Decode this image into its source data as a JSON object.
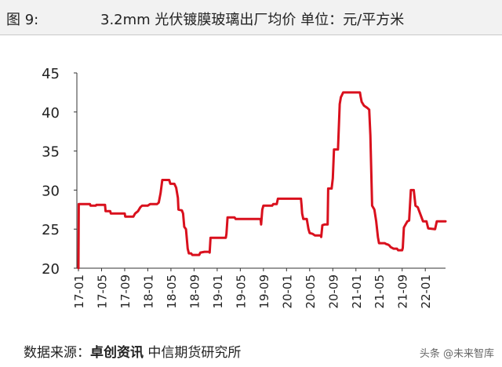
{
  "header": {
    "fig_label": "图 9:",
    "title": "3.2mm 光伏镀膜玻璃出厂均价  单位：元/平方米"
  },
  "footer": {
    "source_prefix": "数据来源：",
    "source_org": "卓创资讯",
    "source_suffix": "  中信期货研究所",
    "watermark": "头条 @未来智库"
  },
  "chart_data": {
    "type": "line",
    "title": "3.2mm 光伏镀膜玻璃出厂均价",
    "ylabel": "元/平方米",
    "ylim": [
      20,
      45
    ],
    "yticks": [
      20,
      25,
      30,
      35,
      40,
      45
    ],
    "xlim": [
      0,
      63.5
    ],
    "xticks": [
      {
        "m": 0,
        "label": "17-01"
      },
      {
        "m": 4,
        "label": "17-05"
      },
      {
        "m": 8,
        "label": "17-09"
      },
      {
        "m": 12,
        "label": "18-01"
      },
      {
        "m": 16,
        "label": "18-05"
      },
      {
        "m": 20,
        "label": "18-09"
      },
      {
        "m": 24,
        "label": "19-01"
      },
      {
        "m": 28,
        "label": "19-05"
      },
      {
        "m": 32,
        "label": "19-09"
      },
      {
        "m": 36,
        "label": "20-01"
      },
      {
        "m": 40,
        "label": "20-05"
      },
      {
        "m": 44,
        "label": "20-09"
      },
      {
        "m": 48,
        "label": "21-01"
      },
      {
        "m": 52,
        "label": "21-05"
      },
      {
        "m": 56,
        "label": "21-09"
      },
      {
        "m": 60,
        "label": "22-01"
      }
    ],
    "line_color": "#d9101d",
    "series": [
      {
        "name": "",
        "points": [
          [
            0,
            20.0
          ],
          [
            0.05,
            28.2
          ],
          [
            2.0,
            28.2
          ],
          [
            2.1,
            28.0
          ],
          [
            3.0,
            28.0
          ],
          [
            3.1,
            28.1
          ],
          [
            4.6,
            28.1
          ],
          [
            4.7,
            27.3
          ],
          [
            5.5,
            27.3
          ],
          [
            5.6,
            27.0
          ],
          [
            8.0,
            27.0
          ],
          [
            8.1,
            26.6
          ],
          [
            9.5,
            26.6
          ],
          [
            9.8,
            27.0
          ],
          [
            10.3,
            27.3
          ],
          [
            10.7,
            27.8
          ],
          [
            11.0,
            28.0
          ],
          [
            12.0,
            28.0
          ],
          [
            12.4,
            28.2
          ],
          [
            13.6,
            28.2
          ],
          [
            13.9,
            28.4
          ],
          [
            14.2,
            29.6
          ],
          [
            14.5,
            31.3
          ],
          [
            15.7,
            31.3
          ],
          [
            15.9,
            30.8
          ],
          [
            16.6,
            30.8
          ],
          [
            16.9,
            30.3
          ],
          [
            17.2,
            29.0
          ],
          [
            17.3,
            27.5
          ],
          [
            17.9,
            27.4
          ],
          [
            18.1,
            27.0
          ],
          [
            18.3,
            25.3
          ],
          [
            18.6,
            25.0
          ],
          [
            18.9,
            22.5
          ],
          [
            19.1,
            21.9
          ],
          [
            19.5,
            21.9
          ],
          [
            19.7,
            21.7
          ],
          [
            20.9,
            21.7
          ],
          [
            21.1,
            22.0
          ],
          [
            21.8,
            22.1
          ],
          [
            22.6,
            22.1
          ],
          [
            22.7,
            22.0
          ],
          [
            22.85,
            23.9
          ],
          [
            25.5,
            23.9
          ],
          [
            25.6,
            24.4
          ],
          [
            25.8,
            26.5
          ],
          [
            27.0,
            26.5
          ],
          [
            27.2,
            26.3
          ],
          [
            31.5,
            26.3
          ],
          [
            31.6,
            25.6
          ],
          [
            31.8,
            27.5
          ],
          [
            32.0,
            28.0
          ],
          [
            33.5,
            28.0
          ],
          [
            33.7,
            28.2
          ],
          [
            34.3,
            28.2
          ],
          [
            34.5,
            28.9
          ],
          [
            38.5,
            28.9
          ],
          [
            38.6,
            28.0
          ],
          [
            38.7,
            27.0
          ],
          [
            38.9,
            26.3
          ],
          [
            39.5,
            26.3
          ],
          [
            39.8,
            25.0
          ],
          [
            40.0,
            24.5
          ],
          [
            40.5,
            24.4
          ],
          [
            40.9,
            24.2
          ],
          [
            41.9,
            24.2
          ],
          [
            42.0,
            24.0
          ],
          [
            42.2,
            25.5
          ],
          [
            42.6,
            25.6
          ],
          [
            43.1,
            25.6
          ],
          [
            43.2,
            30.2
          ],
          [
            43.8,
            30.2
          ],
          [
            44.0,
            31.5
          ],
          [
            44.2,
            35.2
          ],
          [
            44.9,
            35.2
          ],
          [
            45.2,
            41.0
          ],
          [
            45.4,
            41.9
          ],
          [
            45.6,
            42.2
          ],
          [
            45.8,
            42.5
          ],
          [
            48.7,
            42.5
          ],
          [
            48.8,
            42.0
          ],
          [
            49.0,
            41.3
          ],
          [
            49.4,
            40.8
          ],
          [
            50.0,
            40.5
          ],
          [
            50.3,
            40.3
          ],
          [
            50.5,
            37.0
          ],
          [
            50.8,
            28.0
          ],
          [
            51.2,
            27.5
          ],
          [
            51.5,
            26.0
          ],
          [
            51.8,
            24.0
          ],
          [
            52.0,
            23.2
          ],
          [
            53.0,
            23.2
          ],
          [
            53.2,
            23.1
          ],
          [
            53.6,
            23.0
          ],
          [
            53.8,
            22.9
          ],
          [
            54.0,
            22.7
          ],
          [
            54.5,
            22.5
          ],
          [
            55.1,
            22.5
          ],
          [
            55.3,
            22.3
          ],
          [
            56.0,
            22.3
          ],
          [
            56.1,
            22.6
          ],
          [
            56.3,
            25.2
          ],
          [
            56.6,
            25.6
          ],
          [
            56.9,
            26.0
          ],
          [
            57.2,
            26.1
          ],
          [
            57.5,
            30.0
          ],
          [
            58.0,
            30.0
          ],
          [
            58.3,
            28.0
          ],
          [
            58.7,
            27.8
          ],
          [
            59.1,
            27.0
          ],
          [
            59.6,
            26.0
          ],
          [
            60.2,
            26.0
          ],
          [
            60.5,
            25.1
          ],
          [
            61.7,
            25.0
          ],
          [
            62.0,
            26.0
          ],
          [
            63.5,
            26.0
          ]
        ]
      }
    ]
  }
}
